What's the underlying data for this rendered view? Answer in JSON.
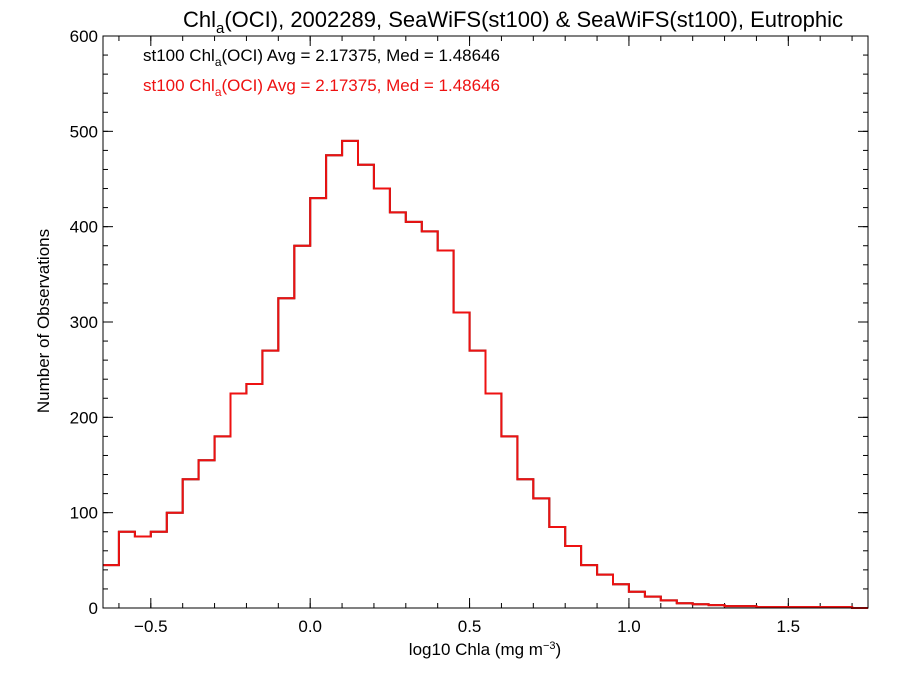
{
  "chart_data": {
    "type": "line",
    "title": {
      "pre": "Chl",
      "sub": "a",
      "post": "(OCI), 2002289, SeaWiFS(st100) & SeaWiFS(st100), Eutrophic"
    },
    "xlabel": {
      "pre": "log10 Chla (mg m",
      "sup": "−3",
      "post": ")"
    },
    "ylabel": "Number of Observations",
    "xlim": [
      -0.65,
      1.75
    ],
    "ylim": [
      0,
      600
    ],
    "x_ticks": [
      -0.5,
      0.0,
      0.5,
      1.0,
      1.5
    ],
    "x_tick_labels": [
      "−0.5",
      "0.0",
      "0.5",
      "1.0",
      "1.5"
    ],
    "y_ticks": [
      0,
      100,
      200,
      300,
      400,
      500,
      600
    ],
    "y_tick_labels": [
      "0",
      "100",
      "200",
      "300",
      "400",
      "500",
      "600"
    ],
    "x_minor_step": 0.1,
    "y_minor_step": 20,
    "legend_position": "top-left",
    "annotations": [
      {
        "pre": "st100 Chl",
        "sub": "a",
        "post": "(OCI) Avg = 2.17375, Med = 1.48646",
        "color": "#000000"
      },
      {
        "pre": "st100 Chl",
        "sub": "a",
        "post": "(OCI) Avg = 2.17375, Med = 1.48646",
        "color": "#ee1111"
      }
    ],
    "series": [
      {
        "color": "#000000",
        "x": [
          -0.65,
          -0.6,
          -0.55,
          -0.5,
          -0.45,
          -0.4,
          -0.35,
          -0.3,
          -0.25,
          -0.2,
          -0.15,
          -0.1,
          -0.05,
          0.0,
          0.05,
          0.1,
          0.15,
          0.2,
          0.25,
          0.3,
          0.35,
          0.4,
          0.45,
          0.5,
          0.55,
          0.6,
          0.65,
          0.7,
          0.75,
          0.8,
          0.85,
          0.9,
          0.95,
          1.0,
          1.05,
          1.1,
          1.15,
          1.2,
          1.25,
          1.3,
          1.35,
          1.4,
          1.45,
          1.5,
          1.55,
          1.6,
          1.65,
          1.7,
          1.75
        ],
        "y": [
          45,
          80,
          75,
          80,
          100,
          135,
          155,
          180,
          225,
          235,
          270,
          325,
          380,
          430,
          475,
          490,
          465,
          440,
          415,
          405,
          395,
          375,
          310,
          270,
          225,
          180,
          135,
          115,
          85,
          65,
          45,
          35,
          25,
          17,
          12,
          8,
          5,
          4,
          3,
          2,
          2,
          1,
          1,
          1,
          1,
          1,
          1,
          0,
          0
        ]
      },
      {
        "color": "#ee1111",
        "x": [
          -0.65,
          -0.6,
          -0.55,
          -0.5,
          -0.45,
          -0.4,
          -0.35,
          -0.3,
          -0.25,
          -0.2,
          -0.15,
          -0.1,
          -0.05,
          0.0,
          0.05,
          0.1,
          0.15,
          0.2,
          0.25,
          0.3,
          0.35,
          0.4,
          0.45,
          0.5,
          0.55,
          0.6,
          0.65,
          0.7,
          0.75,
          0.8,
          0.85,
          0.9,
          0.95,
          1.0,
          1.05,
          1.1,
          1.15,
          1.2,
          1.25,
          1.3,
          1.35,
          1.4,
          1.45,
          1.5,
          1.55,
          1.6,
          1.65,
          1.7,
          1.75
        ],
        "y": [
          45,
          80,
          75,
          80,
          100,
          135,
          155,
          180,
          225,
          235,
          270,
          325,
          380,
          430,
          475,
          490,
          465,
          440,
          415,
          405,
          395,
          375,
          310,
          270,
          225,
          180,
          135,
          115,
          85,
          65,
          45,
          35,
          25,
          17,
          12,
          8,
          5,
          4,
          3,
          2,
          2,
          1,
          1,
          1,
          1,
          1,
          1,
          0,
          0
        ]
      }
    ]
  }
}
